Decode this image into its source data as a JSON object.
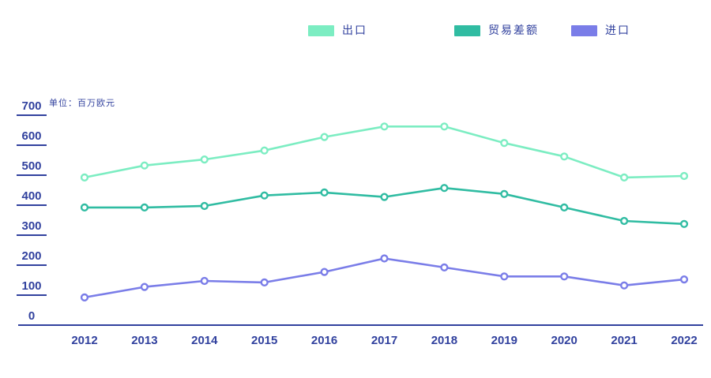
{
  "chart": {
    "unit_label": "单位：百万欧元"
  },
  "chart_data": {
    "type": "line",
    "title": "",
    "unit_label": "单位：百万欧元",
    "categories": [
      2012,
      2013,
      2014,
      2015,
      2016,
      2017,
      2018,
      2019,
      2020,
      2021,
      2022
    ],
    "series": [
      {
        "id": "exports",
        "name": "出口",
        "color": "#7CEDC2",
        "values": [
          495,
          535,
          555,
          585,
          630,
          665,
          665,
          610,
          565,
          495,
          500
        ]
      },
      {
        "id": "trade-balance",
        "name": "贸易差额",
        "color": "#30BCA2",
        "values": [
          395,
          395,
          400,
          435,
          445,
          430,
          460,
          440,
          395,
          350,
          340
        ]
      },
      {
        "id": "imports",
        "name": "进口",
        "color": "#7A7DE8",
        "values": [
          95,
          130,
          150,
          145,
          180,
          225,
          195,
          165,
          165,
          135,
          155
        ]
      }
    ],
    "xlabel": "",
    "ylabel": "",
    "ylim": [
      0,
      700
    ],
    "yticks": [
      0,
      100,
      200,
      300,
      400,
      500,
      600,
      700
    ],
    "grid": false,
    "legend_position": "top",
    "axis_color": "#31419E",
    "marker": "hollow-circle"
  }
}
